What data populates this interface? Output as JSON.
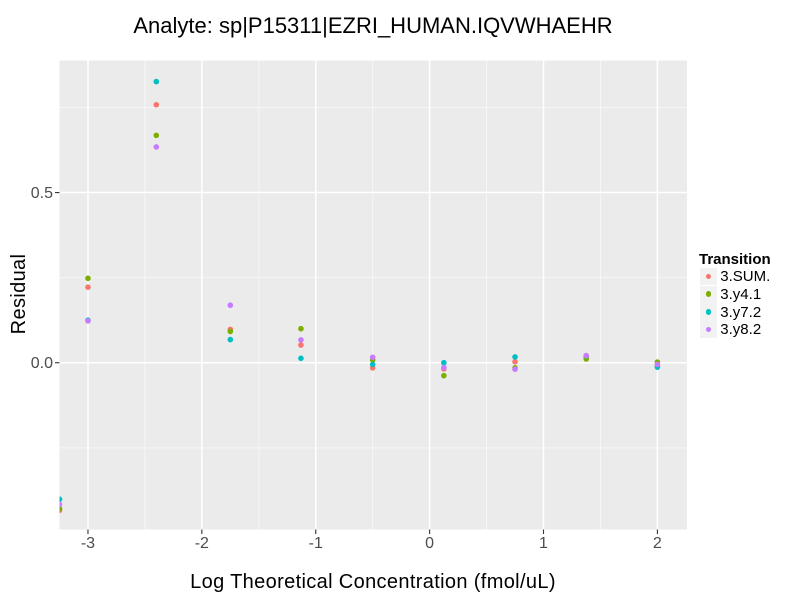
{
  "chart_data": {
    "type": "scatter",
    "title": "Analyte: sp|P15311|EZRI_HUMAN.IQVWHAEHR",
    "xlabel": "Log Theoretical Concentration (fmol/uL)",
    "ylabel": "Residual",
    "xlim": [
      -3.25,
      2.26
    ],
    "ylim": [
      -0.49,
      0.888
    ],
    "x_major_ticks": [
      -3,
      -2,
      -1,
      0,
      1,
      2
    ],
    "x_tick_labels": [
      "-3",
      "-2",
      "-1",
      "0",
      "1",
      "2"
    ],
    "x_minor_ticks": [
      -2.5,
      -1.5,
      -0.5,
      0.5,
      1.5
    ],
    "y_major_ticks": [
      0.0,
      0.5
    ],
    "y_tick_labels": [
      "0.0",
      "0.5"
    ],
    "y_minor_ticks": [
      -0.25,
      0.25,
      0.75
    ],
    "grid": true,
    "panel_background": "#ebebeb",
    "grid_color": "#ffffff",
    "tick_color": "#333333",
    "tick_label_color": "#4d4d4d",
    "point_radius": 2.8,
    "legend": {
      "title": "Transition",
      "position": "right",
      "key_background": "#f2f2f2"
    },
    "x": [
      -3.25,
      -3,
      -2.4,
      -1.75,
      -1.13,
      -0.5,
      0.125,
      0.75,
      1.375,
      2
    ],
    "series": [
      {
        "name": "3.SUM.",
        "color": "#F8766D",
        "values": [
          -0.434,
          0.222,
          0.758,
          0.098,
          0.052,
          -0.015,
          -0.018,
          0.003,
          0.015,
          -0.006
        ]
      },
      {
        "name": "3.y4.1",
        "color": "#7CAE00",
        "values": [
          -0.429,
          0.248,
          0.668,
          0.092,
          0.1,
          0.008,
          -0.038,
          -0.015,
          0.011,
          0.002
        ]
      },
      {
        "name": "3.y7.2",
        "color": "#00BFC4",
        "values": [
          -0.401,
          0.125,
          0.826,
          0.068,
          0.013,
          -0.005,
          0.0,
          0.017,
          0.02,
          -0.013
        ]
      },
      {
        "name": "3.y8.2",
        "color": "#C77CFF",
        "values": [
          -0.416,
          0.123,
          0.634,
          0.169,
          0.067,
          0.016,
          -0.014,
          -0.019,
          0.021,
          -0.005
        ]
      }
    ]
  }
}
